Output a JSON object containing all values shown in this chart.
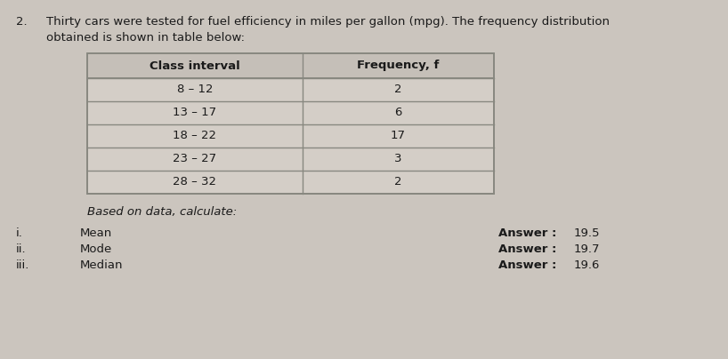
{
  "question_number": "2.",
  "question_text1": "Thirty cars were tested for fuel efficiency in miles per gallon (mpg). The frequency distribution",
  "question_text2": "obtained is shown in table below:",
  "table_header": [
    "Class interval",
    "Frequency, f"
  ],
  "table_rows": [
    [
      "8 – 12",
      "2"
    ],
    [
      "13 – 17",
      "6"
    ],
    [
      "18 – 22",
      "17"
    ],
    [
      "23 – 27",
      "3"
    ],
    [
      "28 – 32",
      "2"
    ]
  ],
  "based_on": "Based on data, calculate:",
  "items": [
    "i.",
    "ii.",
    "iii."
  ],
  "item_labels": [
    "Mean",
    "Mode",
    "Median"
  ],
  "answer_label": "Answer :",
  "answers": [
    "19.5",
    "19.7",
    "19.6"
  ],
  "bg_color": "#cbc5be",
  "table_header_bg": "#c5bfb8",
  "table_row_bg": "#d4cec7",
  "table_border_color": "#888880",
  "text_color": "#1a1a1a",
  "font_size_title": 9.5,
  "font_size_table": 9.5,
  "font_size_items": 9.5,
  "fig_width": 8.18,
  "fig_height": 4.04,
  "dpi": 100
}
